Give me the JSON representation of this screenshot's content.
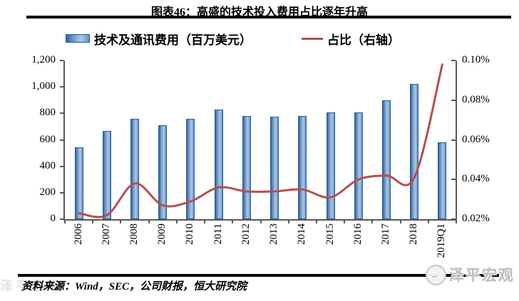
{
  "header": {
    "title": "图表46：高盛的技术投入费用占比逐年升高"
  },
  "legend": {
    "bar_label": "技术及通讯费用（百万美元）",
    "line_label": "占比（右轴）"
  },
  "footer": {
    "source": "资料来源：Wind，SEC，公司财报，恒大研究院",
    "watermark_brand": "泽平宏观"
  },
  "colors": {
    "bar_dark": "#35659e",
    "bar_light": "#a9c7e7",
    "line": "#b5504c",
    "axis": "#595959",
    "rule": "#000000"
  },
  "chart_data": {
    "type": "bar",
    "subtype": "bar+line combo, line on secondary axis",
    "title": "图表46：高盛的技术投入费用占比逐年升高",
    "categories": [
      "2006",
      "2007",
      "2008",
      "2009",
      "2010",
      "2011",
      "2012",
      "2013",
      "2014",
      "2015",
      "2016",
      "2017",
      "2018",
      "2019Q1"
    ],
    "series": [
      {
        "name": "技术及通讯费用（百万美元）",
        "type": "bar",
        "axis": "left",
        "values": [
          544,
          665,
          760,
          712,
          758,
          828,
          782,
          776,
          779,
          806,
          805,
          897,
          1023,
          580
        ]
      },
      {
        "name": "占比（右轴）",
        "type": "line",
        "axis": "right",
        "unit": "%",
        "values": [
          0.023,
          0.022,
          0.038,
          0.027,
          0.029,
          0.036,
          0.034,
          0.034,
          0.035,
          0.031,
          0.04,
          0.042,
          0.041,
          0.098
        ]
      }
    ],
    "left_axis": {
      "min": 0,
      "max": 1200,
      "tick_labels": [
        "0",
        "200",
        "400",
        "600",
        "800",
        "1,000",
        "1,200"
      ]
    },
    "right_axis": {
      "min": 0.02,
      "max": 0.1,
      "tick_labels": [
        "0.02%",
        "0.04%",
        "0.06%",
        "0.08%",
        "0.10%"
      ]
    },
    "grid": false,
    "legend_position": "top",
    "xlabel": "",
    "ylabel": ""
  }
}
